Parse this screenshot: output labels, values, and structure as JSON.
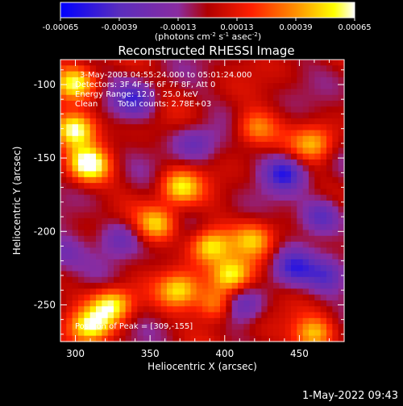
{
  "chart_data": {
    "type": "heatmap",
    "title": "Reconstructed RHESSI Image",
    "xlabel": "Heliocentric X (arcsec)",
    "ylabel": "Heliocentric Y (arcsec)",
    "xlim": [
      290,
      480
    ],
    "ylim": [
      -275,
      -83
    ],
    "x_ticks": [
      300,
      350,
      400,
      450
    ],
    "y_ticks": [
      -100,
      -150,
      -200,
      -250
    ],
    "colorbar": {
      "min": -0.00065,
      "max": 0.00065,
      "tick_values": [
        -0.00065,
        -0.00039,
        -0.00013,
        0.00013,
        0.00039,
        0.00065
      ],
      "tick_labels": [
        "-0.00065",
        "-0.00039",
        "-0.00013",
        "0.00013",
        "0.00039",
        "0.00065"
      ],
      "unit_prefix": "(photons cm",
      "unit_exp1": "-2",
      "unit_mid": " s",
      "unit_exp2": "-1",
      "unit_mid2": " asec",
      "unit_exp3": "-2",
      "unit_suffix": ")",
      "colors": [
        "#0000ff",
        "#5a2dbd",
        "#8a2ca0",
        "#b00000",
        "#ff0000",
        "#ff8800",
        "#ffff00",
        "#ffffff"
      ]
    },
    "annotations": {
      "time_range": "3-May-2003 04:55:24.000 to 05:01:24.000",
      "detectors": "Detectors: 3F 4F 5F 6F 7F 8F, Att 0",
      "energy": "Energy Range: 12.0 - 25.0 keV",
      "clean_label": "Clean",
      "total_counts": "Total counts: 2.78E+03",
      "peak": "Position of Peak = [309,-155]"
    },
    "grid_size": 48,
    "bright_features": [
      {
        "x": 300,
        "y": -130,
        "value": 0.00062
      },
      {
        "x": 309,
        "y": -155,
        "value": 0.00065
      },
      {
        "x": 300,
        "y": -100,
        "value": 0.00055
      },
      {
        "x": 370,
        "y": -170,
        "value": 0.0005
      },
      {
        "x": 355,
        "y": -195,
        "value": 0.00048
      },
      {
        "x": 390,
        "y": -210,
        "value": 0.00058
      },
      {
        "x": 405,
        "y": -230,
        "value": 0.0006
      },
      {
        "x": 325,
        "y": -250,
        "value": 0.0006
      },
      {
        "x": 310,
        "y": -265,
        "value": 0.00055
      },
      {
        "x": 395,
        "y": -250,
        "value": 0.0005
      },
      {
        "x": 370,
        "y": -240,
        "value": 0.00048
      },
      {
        "x": 420,
        "y": -130,
        "value": 0.0004
      },
      {
        "x": 460,
        "y": -140,
        "value": 0.00042
      },
      {
        "x": 420,
        "y": -205,
        "value": 0.00038
      },
      {
        "x": 460,
        "y": -270,
        "value": 0.0005
      }
    ],
    "dark_features": [
      {
        "x": 340,
        "y": -110,
        "value": -0.0004
      },
      {
        "x": 330,
        "y": -205,
        "value": -0.00032
      },
      {
        "x": 440,
        "y": -160,
        "value": -0.0005
      },
      {
        "x": 465,
        "y": -190,
        "value": -0.00045
      },
      {
        "x": 445,
        "y": -225,
        "value": -0.0004
      },
      {
        "x": 410,
        "y": -250,
        "value": -0.0004
      },
      {
        "x": 470,
        "y": -230,
        "value": -0.00035
      },
      {
        "x": 380,
        "y": -140,
        "value": -0.0003
      },
      {
        "x": 290,
        "y": -215,
        "value": -0.0003
      }
    ]
  },
  "footer": {
    "timestamp": "1-May-2022 09:43"
  }
}
